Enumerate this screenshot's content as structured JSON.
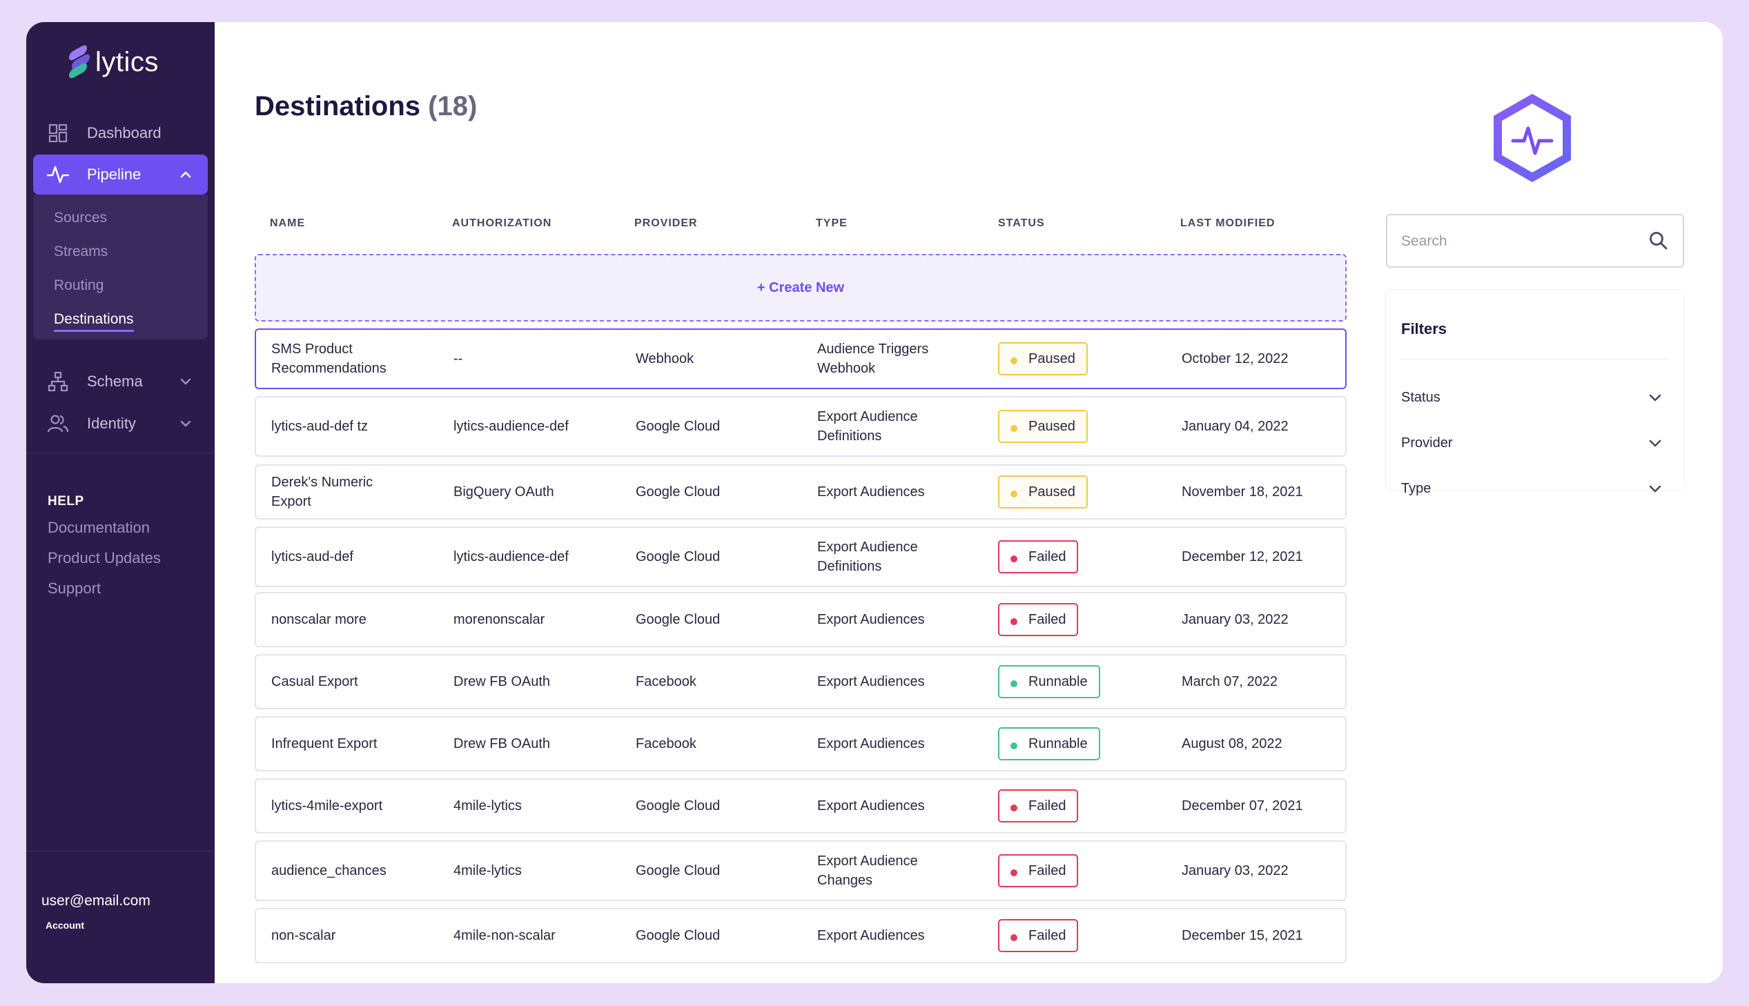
{
  "brand": {
    "name": "lytics"
  },
  "sidebar": {
    "nav": [
      {
        "label": "Dashboard",
        "icon": "dashboard-grid-icon"
      },
      {
        "label": "Pipeline",
        "icon": "pulse-icon",
        "expanded": true,
        "active": true
      },
      {
        "label": "Schema",
        "icon": "hierarchy-icon"
      },
      {
        "label": "Identity",
        "icon": "users-icon"
      }
    ],
    "pipeline_sub": [
      {
        "label": "Sources"
      },
      {
        "label": "Streams"
      },
      {
        "label": "Routing"
      },
      {
        "label": "Destinations",
        "current": true
      }
    ],
    "help": {
      "title": "HELP",
      "links": [
        "Documentation",
        "Product Updates",
        "Support"
      ]
    },
    "user": {
      "email": "user@email.com",
      "account_label": "Account"
    }
  },
  "page": {
    "title": "Destinations",
    "count": "(18)"
  },
  "table": {
    "columns": [
      "NAME",
      "AUTHORIZATION",
      "PROVIDER",
      "TYPE",
      "STATUS",
      "LAST MODIFIED"
    ],
    "create_label": "+ Create New",
    "rows": [
      {
        "name": "SMS Product Recommendations",
        "authorization": "--",
        "provider": "Webhook",
        "type": "Audience Triggers Webhook",
        "status": "Paused",
        "modified": "October 12, 2022",
        "selected": true
      },
      {
        "name": "lytics-aud-def tz",
        "authorization": "lytics-audience-def",
        "provider": "Google Cloud",
        "type": "Export Audience Definitions",
        "status": "Paused",
        "modified": "January 04, 2022"
      },
      {
        "name": "Derek's Numeric Export",
        "authorization": "BigQuery OAuth",
        "provider": "Google Cloud",
        "type": "Export Audiences",
        "status": "Paused",
        "modified": "November 18, 2021"
      },
      {
        "name": "lytics-aud-def",
        "authorization": "lytics-audience-def",
        "provider": "Google Cloud",
        "type": "Export Audience Definitions",
        "status": "Failed",
        "modified": "December 12, 2021"
      },
      {
        "name": "nonscalar more",
        "authorization": "morenonscalar",
        "provider": "Google Cloud",
        "type": "Export Audiences",
        "status": "Failed",
        "modified": "January 03, 2022"
      },
      {
        "name": "Casual Export",
        "authorization": "Drew FB OAuth",
        "provider": "Facebook",
        "type": "Export Audiences",
        "status": "Runnable",
        "modified": "March 07, 2022"
      },
      {
        "name": "Infrequent Export",
        "authorization": "Drew FB OAuth",
        "provider": "Facebook",
        "type": "Export Audiences",
        "status": "Runnable",
        "modified": "August 08, 2022"
      },
      {
        "name": "lytics-4mile-export",
        "authorization": "4mile-lytics",
        "provider": "Google Cloud",
        "type": "Export Audiences",
        "status": "Failed",
        "modified": "December 07, 2021"
      },
      {
        "name": "audience_chances",
        "authorization": "4mile-lytics",
        "provider": "Google Cloud",
        "type": "Export Audience Changes",
        "status": "Failed",
        "modified": "January 03, 2022"
      },
      {
        "name": "non-scalar",
        "authorization": "4mile-non-scalar",
        "provider": "Google Cloud",
        "type": "Export Audiences",
        "status": "Failed",
        "modified": "December 15, 2021"
      }
    ]
  },
  "search": {
    "placeholder": "Search",
    "icon": "search-icon"
  },
  "filters": {
    "title": "Filters",
    "items": [
      {
        "label": "Status"
      },
      {
        "label": "Provider"
      },
      {
        "label": "Type"
      }
    ]
  },
  "colors": {
    "sidebar_bg": "#2b1b4b",
    "accent": "#6e4ff0",
    "paused": "#f2c94c",
    "failed": "#e03c54",
    "runnable": "#43c38a",
    "page_bg": "#e9dcfb"
  }
}
